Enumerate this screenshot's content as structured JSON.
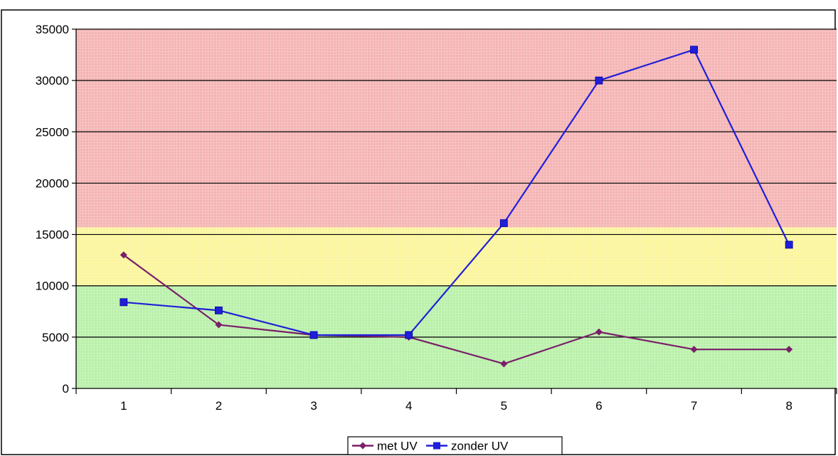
{
  "chart_data": {
    "type": "line",
    "title": "",
    "xlabel": "",
    "ylabel": "",
    "categories": [
      "1",
      "2",
      "3",
      "4",
      "5",
      "6",
      "7",
      "8"
    ],
    "ylim": [
      0,
      35000
    ],
    "yticks": [
      "0",
      "5000",
      "10000",
      "15000",
      "20000",
      "25000",
      "30000",
      "35000"
    ],
    "grid": true,
    "legend": "bottom",
    "bands": [
      {
        "from": 0,
        "to": 10000,
        "color": "#b8f0a8"
      },
      {
        "from": 10000,
        "to": 15700,
        "color": "#fbf59a"
      },
      {
        "from": 15700,
        "to": 35000,
        "color": "#f5b3b3"
      }
    ],
    "series": [
      {
        "name": "met UV",
        "color": "#7a1f6a",
        "marker": "diamond",
        "values": [
          13000,
          6200,
          5200,
          5000,
          2400,
          5500,
          3800,
          3800
        ]
      },
      {
        "name": "zonder UV",
        "color": "#1f1fd8",
        "marker": "square",
        "values": [
          8400,
          7600,
          5200,
          5200,
          16100,
          30000,
          33000,
          14000
        ]
      }
    ]
  }
}
